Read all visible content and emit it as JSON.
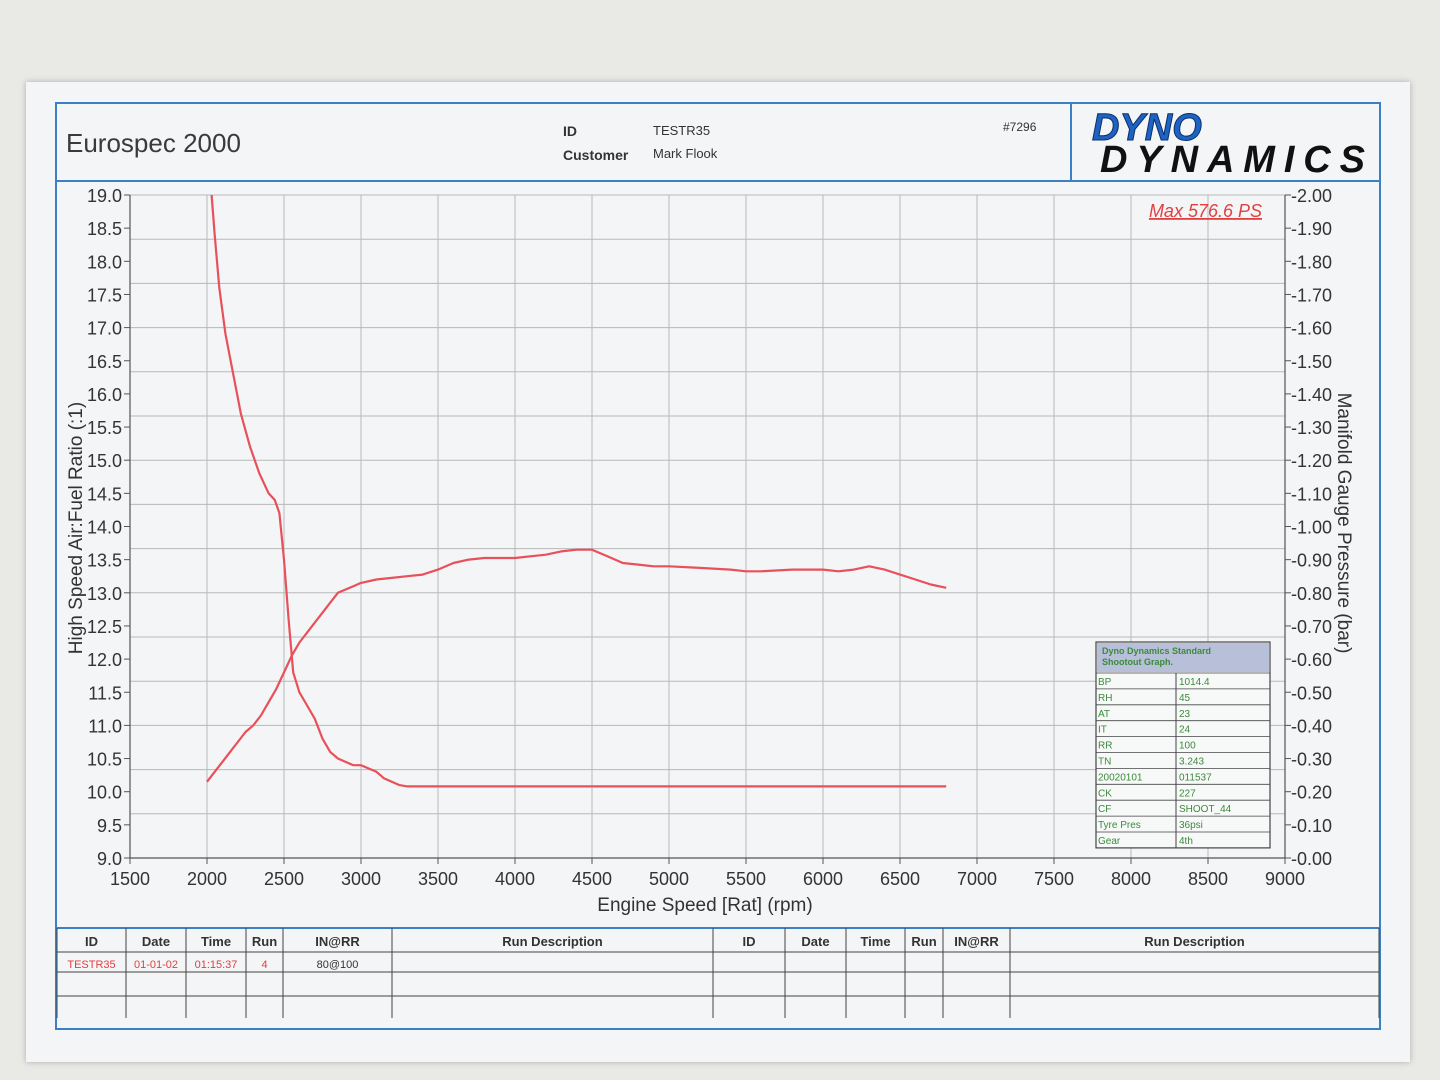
{
  "header": {
    "title": "Eurospec 2000",
    "id_label": "ID",
    "id_value": "TESTR35",
    "customer_label": "Customer",
    "customer_value": "Mark Flook",
    "sheet_number": "#7296",
    "logo_line1": "DYNO",
    "logo_line2": "DYNAMICS"
  },
  "colors": {
    "curve": "#e8505a",
    "frame": "#3b7fc4",
    "grid": "#b9b9b9",
    "text": "#333333",
    "info_text": "#3c8a3c"
  },
  "chart_data": {
    "type": "line",
    "xlabel": "Engine Speed [Rat] (rpm)",
    "ylabel_left": "High Speed Air:Fuel Ratio (:1)",
    "ylabel_right": "Manifold Gauge Pressure (bar)",
    "xlim": [
      1500,
      9000
    ],
    "ylim_left": [
      9.0,
      19.0
    ],
    "ylim_right": [
      0.0,
      2.0
    ],
    "x_ticks": [
      "1500",
      "2000",
      "2500",
      "3000",
      "3500",
      "4000",
      "4500",
      "5000",
      "5500",
      "6000",
      "6500",
      "7000",
      "7500",
      "8000",
      "8500",
      "9000"
    ],
    "y_left_ticks": [
      "9.0",
      "9.5",
      "10.0",
      "10.5",
      "11.0",
      "11.5",
      "12.0",
      "12.5",
      "13.0",
      "13.5",
      "14.0",
      "14.5",
      "15.0",
      "15.5",
      "16.0",
      "16.5",
      "17.0",
      "17.5",
      "18.0",
      "18.5",
      "19.0"
    ],
    "y_right_ticks": [
      "0.00",
      "0.10",
      "0.20",
      "0.30",
      "0.40",
      "0.50",
      "0.60",
      "0.70",
      "0.80",
      "0.90",
      "1.00",
      "1.10",
      "1.20",
      "1.30",
      "1.40",
      "1.50",
      "1.60",
      "1.70",
      "1.80",
      "1.90",
      "2.00"
    ],
    "annotation": "Max 576.6 PS",
    "grid": true,
    "series": [
      {
        "axis": "left",
        "x": [
          2030,
          2050,
          2080,
          2120,
          2170,
          2220,
          2280,
          2340,
          2400,
          2440,
          2470,
          2500,
          2530,
          2560,
          2600,
          2650,
          2700,
          2750,
          2800,
          2850,
          2900,
          2950,
          3000,
          3050,
          3100,
          3150,
          3200,
          3250,
          3300,
          3400,
          3500,
          4000,
          4500,
          5000,
          5500,
          6000,
          6500,
          6800
        ],
        "y": [
          19.0,
          18.4,
          17.6,
          16.9,
          16.3,
          15.7,
          15.2,
          14.8,
          14.5,
          14.4,
          14.2,
          13.5,
          12.6,
          11.8,
          11.5,
          11.3,
          11.1,
          10.8,
          10.6,
          10.5,
          10.45,
          10.4,
          10.4,
          10.35,
          10.3,
          10.2,
          10.15,
          10.1,
          10.08,
          10.08,
          10.08,
          10.08,
          10.08,
          10.08,
          10.08,
          10.08,
          10.08,
          10.08
        ]
      },
      {
        "axis": "right",
        "x": [
          2000,
          2050,
          2100,
          2150,
          2200,
          2250,
          2300,
          2350,
          2400,
          2450,
          2500,
          2550,
          2600,
          2650,
          2700,
          2750,
          2800,
          2850,
          2900,
          2950,
          3000,
          3100,
          3200,
          3300,
          3400,
          3500,
          3600,
          3700,
          3800,
          3900,
          4000,
          4100,
          4200,
          4300,
          4400,
          4500,
          4600,
          4700,
          4800,
          4900,
          5000,
          5200,
          5400,
          5500,
          5600,
          5800,
          6000,
          6100,
          6200,
          6300,
          6400,
          6500,
          6600,
          6700,
          6800
        ],
        "y": [
          0.23,
          0.26,
          0.29,
          0.32,
          0.35,
          0.38,
          0.4,
          0.43,
          0.47,
          0.51,
          0.56,
          0.61,
          0.65,
          0.68,
          0.71,
          0.74,
          0.77,
          0.8,
          0.81,
          0.82,
          0.83,
          0.84,
          0.845,
          0.85,
          0.855,
          0.87,
          0.89,
          0.9,
          0.905,
          0.905,
          0.905,
          0.91,
          0.915,
          0.925,
          0.93,
          0.93,
          0.91,
          0.89,
          0.885,
          0.88,
          0.88,
          0.875,
          0.87,
          0.865,
          0.865,
          0.87,
          0.87,
          0.865,
          0.87,
          0.88,
          0.87,
          0.855,
          0.84,
          0.825,
          0.815
        ]
      }
    ]
  },
  "info_box": {
    "title_line1": "Dyno Dynamics Standard",
    "title_line2": "Shootout Graph.",
    "rows": [
      [
        "BP",
        "1014.4"
      ],
      [
        "RH",
        "45"
      ],
      [
        "AT",
        "23"
      ],
      [
        "IT",
        "24"
      ],
      [
        "RR",
        "100"
      ],
      [
        "TN",
        "3.243"
      ],
      [
        "20020101",
        "011537"
      ],
      [
        "CK",
        "227"
      ],
      [
        "CF",
        "SHOOT_44"
      ],
      [
        "Tyre Pres",
        "36psi"
      ],
      [
        "Gear",
        "4th"
      ]
    ]
  },
  "run_table": {
    "headers_left": [
      "ID",
      "Date",
      "Time",
      "Run",
      "IN@RR",
      "Run Description"
    ],
    "headers_right": [
      "ID",
      "Date",
      "Time",
      "Run",
      "IN@RR",
      "Run Description"
    ],
    "row": [
      "TESTR35",
      "01-01-02",
      "01:15:37",
      "4",
      "80@100",
      ""
    ]
  }
}
